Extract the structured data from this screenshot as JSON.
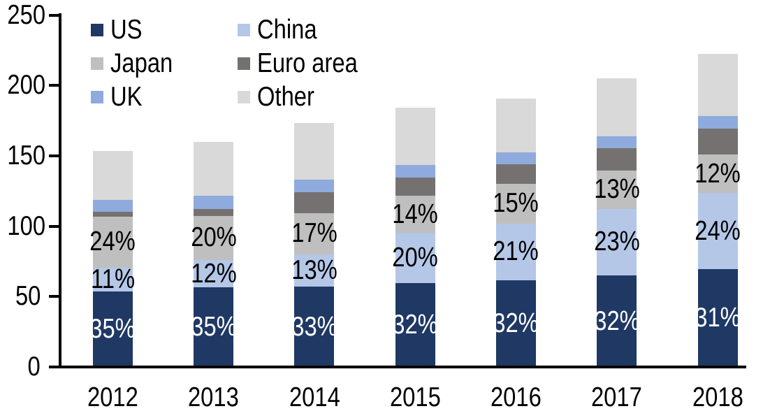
{
  "chart_data": {
    "type": "bar",
    "stacked": true,
    "title": "",
    "xlabel": "",
    "ylabel": "",
    "categories": [
      "2012",
      "2013",
      "2014",
      "2015",
      "2016",
      "2017",
      "2018"
    ],
    "series": [
      {
        "name": "US",
        "color": "#1F3864",
        "values": [
          53.5,
          56.5,
          57.0,
          59.5,
          61.5,
          65.0,
          69.5
        ],
        "labels": [
          "35%",
          "35%",
          "33%",
          "32%",
          "32%",
          "32%",
          "31%"
        ],
        "label_color": "#FFFFFF"
      },
      {
        "name": "China",
        "color": "#B4C7E7",
        "values": [
          17.0,
          19.5,
          23.0,
          36.0,
          40.5,
          47.5,
          54.0
        ],
        "labels": [
          "11%",
          "12%",
          "13%",
          "20%",
          "21%",
          "23%",
          "24%"
        ],
        "label_color": "#000000"
      },
      {
        "name": "Japan",
        "color": "#BFBFBF",
        "values": [
          36.5,
          31.5,
          29.5,
          26.0,
          28.0,
          27.0,
          27.5
        ],
        "labels": [
          "24%",
          "20%",
          "17%",
          "14%",
          "15%",
          "13%",
          "12%"
        ],
        "label_color": "#000000"
      },
      {
        "name": "Euro area",
        "color": "#767171",
        "values": [
          3.5,
          5.0,
          14.5,
          13.0,
          14.0,
          16.0,
          18.5
        ]
      },
      {
        "name": "UK",
        "color": "#8FAADC",
        "values": [
          8.0,
          9.0,
          9.0,
          9.0,
          8.5,
          8.5,
          9.0
        ]
      },
      {
        "name": "Other",
        "color": "#D9D9D9",
        "values": [
          35.0,
          38.5,
          40.5,
          41.0,
          38.5,
          41.0,
          44.0
        ]
      }
    ],
    "totals": [
      153.5,
      160.0,
      173.5,
      184.5,
      191.0,
      205.0,
      222.5
    ],
    "ylim": [
      0,
      250
    ],
    "yticks": [
      0,
      50,
      100,
      150,
      200,
      250
    ],
    "grid": false,
    "legend_position": "top-left",
    "legend_rows": [
      [
        "US",
        "China"
      ],
      [
        "Japan",
        "Euro area"
      ],
      [
        "UK",
        "Other"
      ]
    ],
    "axis_color": "#000000",
    "background_color": "#FFFFFF"
  }
}
